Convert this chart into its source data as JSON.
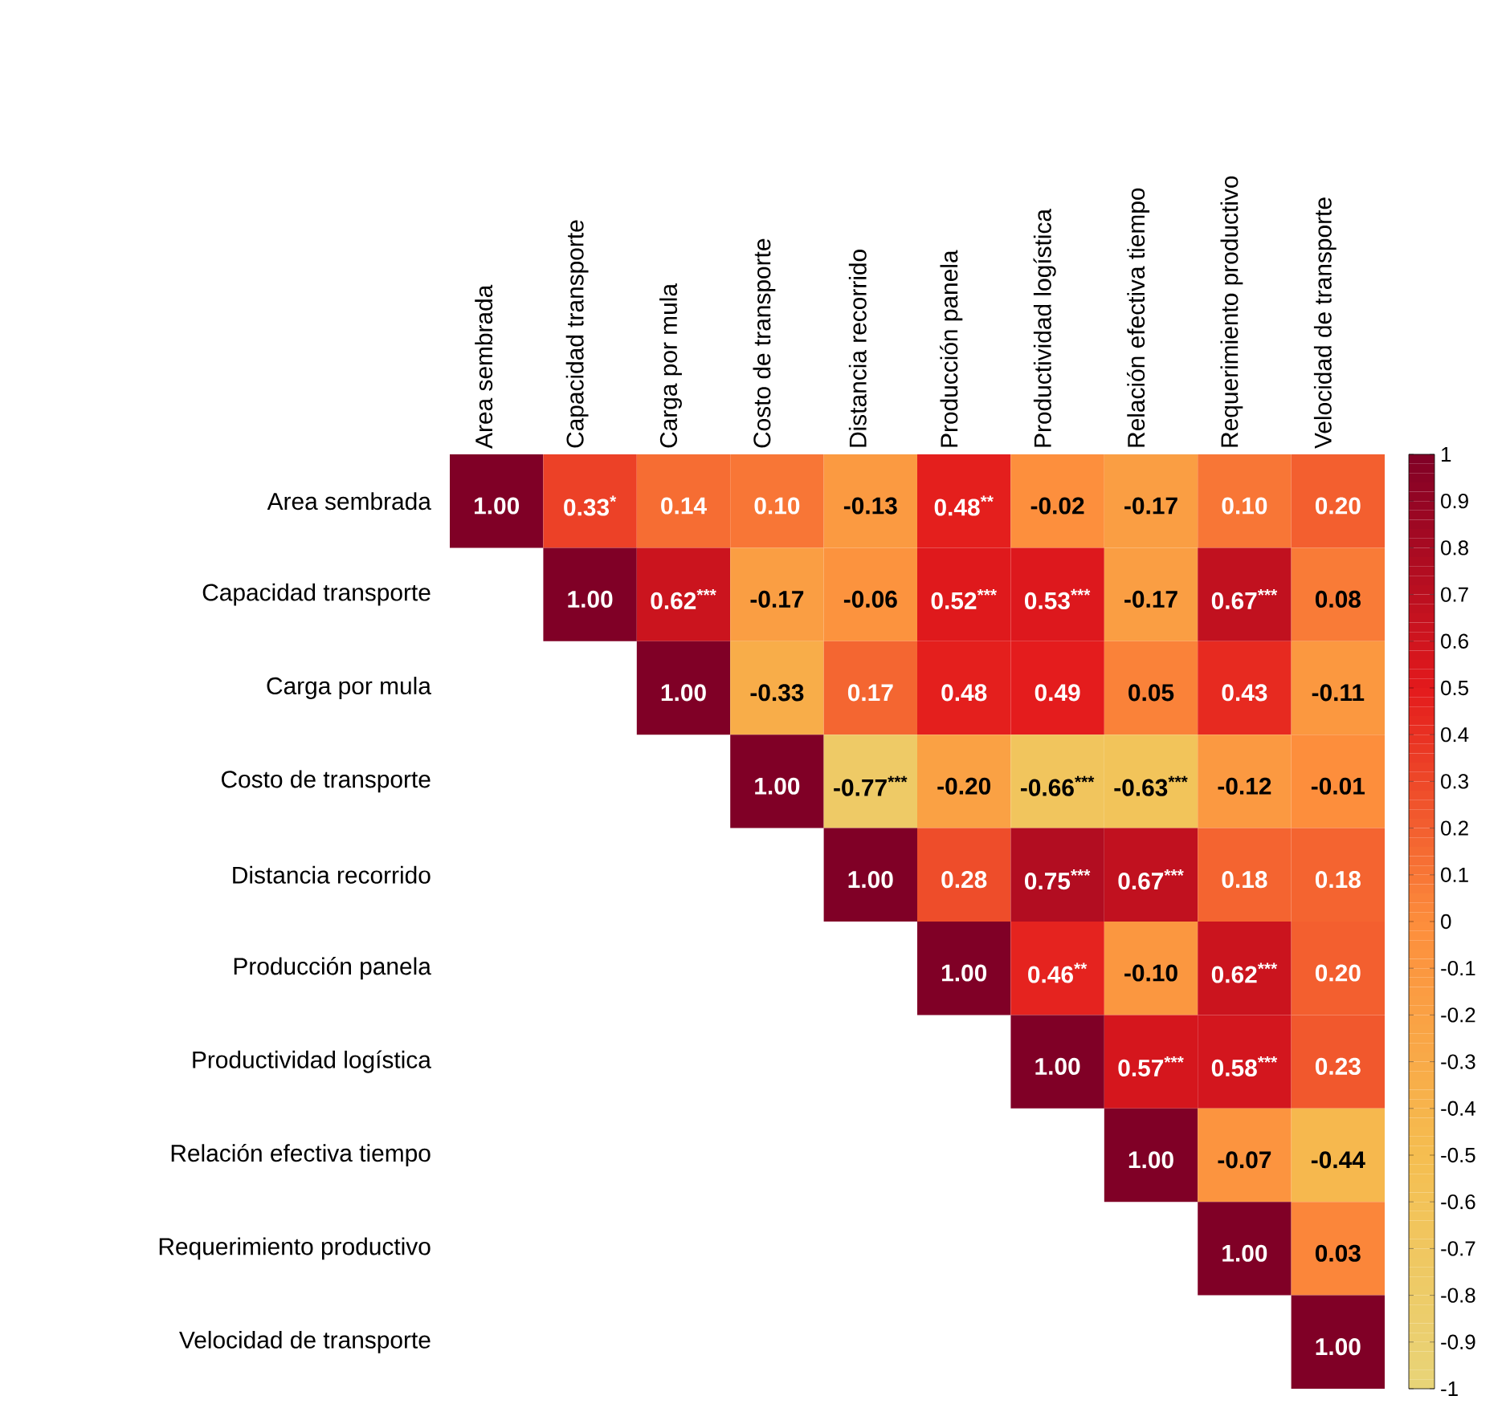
{
  "chart_data": {
    "type": "heatmap",
    "categories": [
      "Area sembrada",
      "Capacidad transporte",
      "Carga por mula",
      "Costo de transporte",
      "Distancia recorrido",
      "Producción panela",
      "Productividad logística",
      "Relación efectiva tiempo",
      "Requerimiento  productivo",
      "Velocidad de transporte"
    ],
    "y_categories": [
      "Area sembrada",
      "Capacidad transporte",
      "Carga por mula",
      "Costo de transporte",
      "Distancia recorrido",
      "Producción panela",
      "Productividad logística",
      "Relación efectiva tiempo",
      "Requerimiento  productivo",
      "Velocidad de transporte"
    ],
    "cells": [
      [
        1.0,
        0.33,
        0.14,
        0.1,
        -0.13,
        0.48,
        -0.02,
        -0.17,
        0.1,
        0.2
      ],
      [
        null,
        1.0,
        0.62,
        -0.17,
        -0.06,
        0.52,
        0.53,
        -0.17,
        0.67,
        0.08
      ],
      [
        null,
        null,
        1.0,
        -0.33,
        0.17,
        0.48,
        0.49,
        0.05,
        0.43,
        -0.11
      ],
      [
        null,
        null,
        null,
        1.0,
        -0.77,
        -0.2,
        -0.66,
        -0.63,
        -0.12,
        -0.01
      ],
      [
        null,
        null,
        null,
        null,
        1.0,
        0.28,
        0.75,
        0.67,
        0.18,
        0.18
      ],
      [
        null,
        null,
        null,
        null,
        null,
        1.0,
        0.46,
        -0.1,
        0.62,
        0.2
      ],
      [
        null,
        null,
        null,
        null,
        null,
        null,
        1.0,
        0.57,
        0.58,
        0.23
      ],
      [
        null,
        null,
        null,
        null,
        null,
        null,
        null,
        1.0,
        -0.07,
        -0.44
      ],
      [
        null,
        null,
        null,
        null,
        null,
        null,
        null,
        null,
        1.0,
        0.03
      ],
      [
        null,
        null,
        null,
        null,
        null,
        null,
        null,
        null,
        null,
        1.0
      ]
    ],
    "cell_labels": [
      [
        "1.00",
        "0.33$^{*}$",
        "0.14",
        "0.10",
        "-0.13",
        "0.48$^{**}$",
        "-0.02",
        "-0.17",
        "0.10",
        "0.20"
      ],
      [
        null,
        "1.00",
        "0.62$^{***}$",
        "-0.17",
        "-0.06",
        "0.52$^{***}$",
        "0.53$^{***}$",
        "-0.17",
        "0.67$^{***}$",
        "0.08"
      ],
      [
        null,
        null,
        "1.00",
        "-0.33",
        "0.17",
        "0.48",
        "0.49",
        "0.05",
        "0.43",
        "-0.11"
      ],
      [
        null,
        null,
        null,
        "1.00",
        "-0.77$^{***}$",
        "-0.20",
        "-0.66$^{***}$",
        "-0.63$^{***}$",
        "-0.12",
        "-0.01"
      ],
      [
        null,
        null,
        null,
        null,
        "1.00",
        "0.28",
        "0.75$^{***}$",
        "0.67$^{***}$",
        "0.18",
        "0.18"
      ],
      [
        null,
        null,
        null,
        null,
        null,
        "1.00",
        "0.46$^{**}$",
        "-0.10",
        "0.62$^{***}$",
        "0.20"
      ],
      [
        null,
        null,
        null,
        null,
        null,
        null,
        "1.00",
        "0.57$^{***}$",
        "0.58$^{***}$",
        "0.23"
      ],
      [
        null,
        null,
        null,
        null,
        null,
        null,
        null,
        "1.00",
        "-0.07",
        "-0.44"
      ],
      [
        null,
        null,
        null,
        null,
        null,
        null,
        null,
        null,
        "1.00",
        "0.03"
      ],
      [
        null,
        null,
        null,
        null,
        null,
        null,
        null,
        null,
        null,
        "1.00"
      ]
    ],
    "data_labels": true,
    "clim": [
      -1,
      1
    ],
    "cticks": [
      1,
      0.9,
      0.8,
      0.7,
      0.6,
      0.5,
      0.4,
      0.3,
      0.2,
      0.1,
      0,
      -0.1,
      -0.2,
      -0.3,
      -0.4,
      -0.5,
      -0.6,
      -0.7,
      -0.8,
      -0.9,
      -1
    ]
  }
}
